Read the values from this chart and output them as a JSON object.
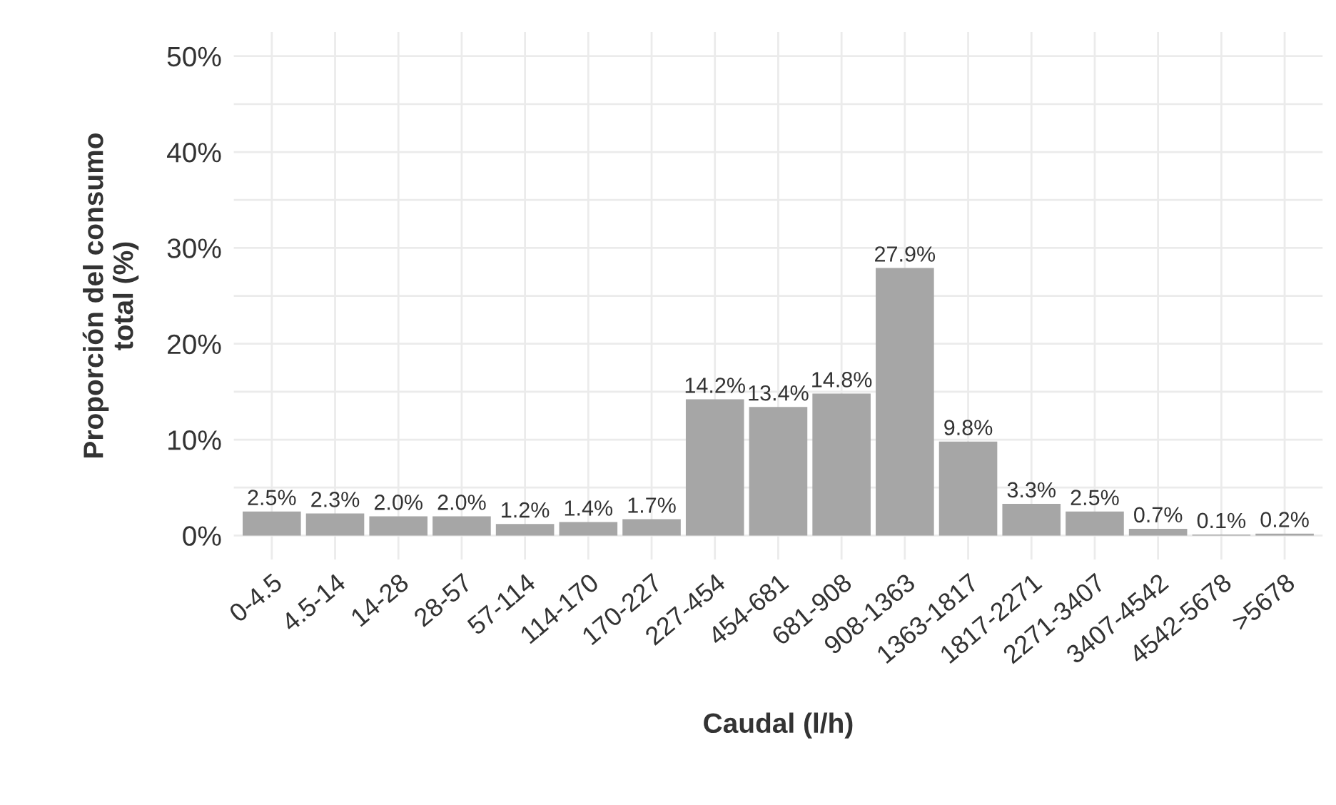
{
  "chart_data": {
    "type": "bar",
    "xlabel": "Caudal (l/h)",
    "ylabel": "Proporción del consumo\ntotal (%)",
    "categories": [
      "0-4.5",
      "4.5-14",
      "14-28",
      "28-57",
      "57-114",
      "114-170",
      "170-227",
      "227-454",
      "454-681",
      "681-908",
      "908-1363",
      "1363-1817",
      "1817-2271",
      "2271-3407",
      "3407-4542",
      "4542-5678",
      ">5678"
    ],
    "values": [
      2.5,
      2.3,
      2.0,
      2.0,
      1.2,
      1.4,
      1.7,
      14.2,
      13.4,
      14.8,
      27.9,
      9.8,
      3.3,
      2.5,
      0.7,
      0.1,
      0.2
    ],
    "value_labels": [
      "2.5%",
      "2.3%",
      "2.0%",
      "2.0%",
      "1.2%",
      "1.4%",
      "1.7%",
      "14.2%",
      "13.4%",
      "14.8%",
      "27.9%",
      "9.8%",
      "3.3%",
      "2.5%",
      "0.7%",
      "0.1%",
      "0.2%"
    ],
    "color": "#a6a6a6",
    "ylim": [
      -2.5,
      52.5
    ],
    "yticks": [
      {
        "value": 0,
        "label": "0%"
      },
      {
        "value": 5,
        "label": null
      },
      {
        "value": 10,
        "label": "10%"
      },
      {
        "value": 15,
        "label": null
      },
      {
        "value": 20,
        "label": "20%"
      },
      {
        "value": 25,
        "label": null
      },
      {
        "value": 30,
        "label": "30%"
      },
      {
        "value": 35,
        "label": null
      },
      {
        "value": 40,
        "label": "40%"
      },
      {
        "value": 45,
        "label": null
      },
      {
        "value": 50,
        "label": "50%"
      }
    ],
    "grid": true
  }
}
